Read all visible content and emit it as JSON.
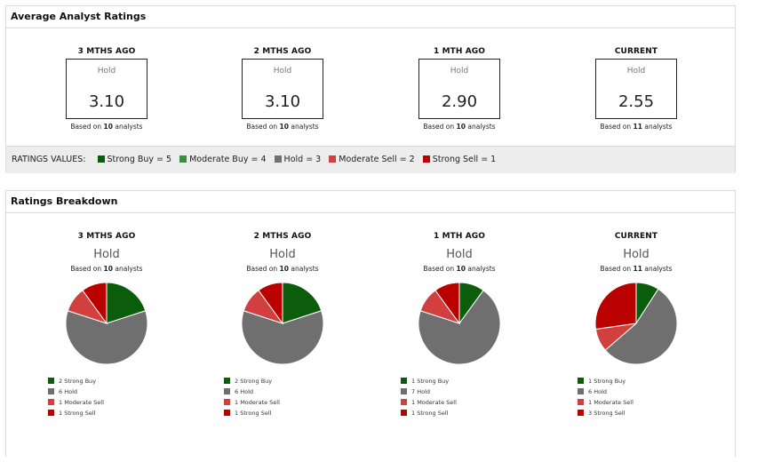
{
  "colors": {
    "strong_buy": "#0b5d0b",
    "moderate_buy": "#3b8f3b",
    "hold": "#6f6f6f",
    "moderate_sell": "#d23f3f",
    "strong_sell": "#bb0000"
  },
  "average": {
    "title": "Average Analyst Ratings",
    "based_prefix": "Based on",
    "based_suffix": "analysts",
    "periods": [
      {
        "label": "3 MTHS AGO",
        "rating": "Hold",
        "value": "3.10",
        "count": "10"
      },
      {
        "label": "2 MTHS AGO",
        "rating": "Hold",
        "value": "3.10",
        "count": "10"
      },
      {
        "label": "1 MTH AGO",
        "rating": "Hold",
        "value": "2.90",
        "count": "10"
      },
      {
        "label": "CURRENT",
        "rating": "Hold",
        "value": "2.55",
        "count": "11"
      }
    ],
    "values_title": "RATINGS VALUES:",
    "values": [
      {
        "label": "Strong Buy = 5",
        "color": "#0b5d0b"
      },
      {
        "label": "Moderate Buy = 4",
        "color": "#3b8f3b"
      },
      {
        "label": "Hold = 3",
        "color": "#6f6f6f"
      },
      {
        "label": "Moderate Sell = 2",
        "color": "#d23f3f"
      },
      {
        "label": "Strong Sell = 1",
        "color": "#bb0000"
      }
    ]
  },
  "breakdown": {
    "title": "Ratings Breakdown",
    "periods": [
      {
        "label": "3 MTHS AGO",
        "rating": "Hold",
        "count": "10",
        "legend": [
          "2 Strong Buy",
          "6 Hold",
          "1 Moderate Sell",
          "1 Strong Sell"
        ]
      },
      {
        "label": "2 MTHS AGO",
        "rating": "Hold",
        "count": "10",
        "legend": [
          "2 Strong Buy",
          "6 Hold",
          "1 Moderate Sell",
          "1 Strong Sell"
        ]
      },
      {
        "label": "1 MTH AGO",
        "rating": "Hold",
        "count": "10",
        "legend": [
          "1 Strong Buy",
          "7 Hold",
          "1 Moderate Sell",
          "1 Strong Sell"
        ]
      },
      {
        "label": "CURRENT",
        "rating": "Hold",
        "count": "11",
        "legend": [
          "1 Strong Buy",
          "6 Hold",
          "1 Moderate Sell",
          "3 Strong Sell"
        ]
      }
    ]
  },
  "chart_data": [
    {
      "type": "pie",
      "title": "3 MTHS AGO",
      "labels": [
        "Strong Buy",
        "Hold",
        "Moderate Sell",
        "Strong Sell"
      ],
      "values": [
        2,
        6,
        1,
        1
      ],
      "colors": [
        "#0b5d0b",
        "#6f6f6f",
        "#d23f3f",
        "#bb0000"
      ]
    },
    {
      "type": "pie",
      "title": "2 MTHS AGO",
      "labels": [
        "Strong Buy",
        "Hold",
        "Moderate Sell",
        "Strong Sell"
      ],
      "values": [
        2,
        6,
        1,
        1
      ],
      "colors": [
        "#0b5d0b",
        "#6f6f6f",
        "#d23f3f",
        "#bb0000"
      ]
    },
    {
      "type": "pie",
      "title": "1 MTH AGO",
      "labels": [
        "Strong Buy",
        "Hold",
        "Moderate Sell",
        "Strong Sell"
      ],
      "values": [
        1,
        7,
        1,
        1
      ],
      "colors": [
        "#0b5d0b",
        "#6f6f6f",
        "#d23f3f",
        "#bb0000"
      ]
    },
    {
      "type": "pie",
      "title": "CURRENT",
      "labels": [
        "Strong Buy",
        "Hold",
        "Moderate Sell",
        "Strong Sell"
      ],
      "values": [
        1,
        6,
        1,
        3
      ],
      "colors": [
        "#0b5d0b",
        "#6f6f6f",
        "#d23f3f",
        "#bb0000"
      ]
    }
  ]
}
